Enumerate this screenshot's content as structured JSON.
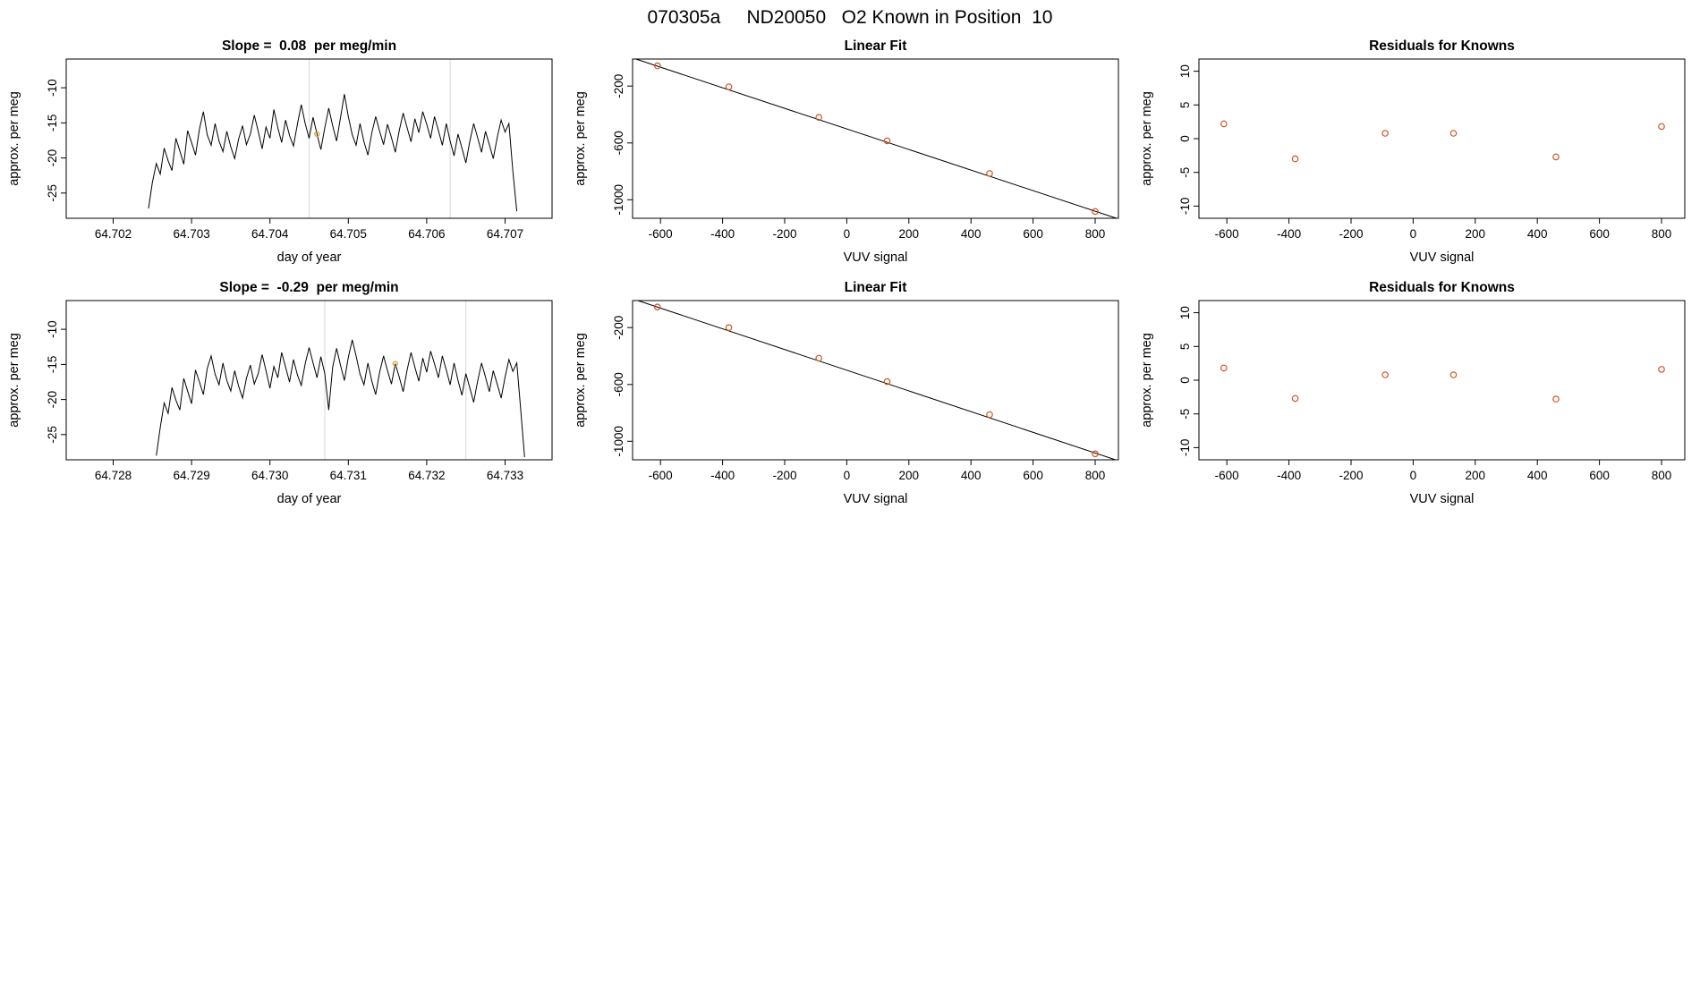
{
  "page": {
    "title": "070305a     ND20050   O2 Known in Position  10"
  },
  "colors": {
    "line": "#000000",
    "point": "#cc5522",
    "marker": "#e09b2d",
    "grid": "#d8d8d8",
    "axis": "#000000"
  },
  "chart_data": [
    {
      "type": "line",
      "title": "Slope =  0.08  per meg/min",
      "xlabel": "day of year",
      "ylabel": "approx. per meg",
      "xlim": [
        64.7014,
        64.7076
      ],
      "ylim": [
        -28.6,
        -5.9
      ],
      "xticks": [
        {
          "v": 64.702,
          "label": "64.702"
        },
        {
          "v": 64.703,
          "label": "64.703"
        },
        {
          "v": 64.704,
          "label": "64.704"
        },
        {
          "v": 64.705,
          "label": "64.705"
        },
        {
          "v": 64.706,
          "label": "64.706"
        },
        {
          "v": 64.707,
          "label": "64.707"
        }
      ],
      "yticks": [
        {
          "v": -25,
          "label": "-25"
        },
        {
          "v": -20,
          "label": "-20"
        },
        {
          "v": -15,
          "label": "-15"
        },
        {
          "v": -10,
          "label": "-10"
        }
      ],
      "gridlines_x": [
        64.7045,
        64.7063
      ],
      "x_start": 64.70245,
      "x_step": 5e-05,
      "series_y": [
        -27.2,
        -23.5,
        -20.8,
        -22.3,
        -18.6,
        -20.4,
        -21.8,
        -17.2,
        -19.0,
        -20.9,
        -16.1,
        -17.8,
        -19.6,
        -15.9,
        -13.4,
        -16.7,
        -18.2,
        -15.1,
        -17.6,
        -19.1,
        -16.2,
        -18.4,
        -20.1,
        -17.3,
        -15.4,
        -18.1,
        -16.6,
        -13.9,
        -16.2,
        -18.7,
        -15.6,
        -17.2,
        -13.1,
        -15.7,
        -17.8,
        -14.6,
        -16.8,
        -18.3,
        -15.2,
        -12.4,
        -15.1,
        -17.2,
        -14.2,
        -16.6,
        -18.8,
        -15.7,
        -12.9,
        -15.4,
        -17.6,
        -14.3,
        -10.9,
        -14.1,
        -16.7,
        -18.2,
        -15.1,
        -17.7,
        -19.6,
        -16.4,
        -14.1,
        -16.2,
        -18.1,
        -15.2,
        -17.1,
        -19.2,
        -16.1,
        -13.6,
        -15.7,
        -17.7,
        -14.4,
        -16.4,
        -13.4,
        -15.2,
        -17.2,
        -14.1,
        -16.1,
        -18.2,
        -15.1,
        -17.6,
        -19.7,
        -16.6,
        -18.6,
        -20.7,
        -17.7,
        -15.1,
        -17.1,
        -19.2,
        -16.2,
        -18.1,
        -20.1,
        -17.1,
        -14.6,
        -16.3,
        -15.1,
        -21.9,
        -27.6
      ],
      "marker": {
        "x": 64.7046,
        "y": -16.6
      }
    },
    {
      "type": "scatter",
      "title": "Linear Fit",
      "xlabel": "VUV signal",
      "ylabel": "approx. per meg",
      "xlim": [
        -690,
        875
      ],
      "ylim": [
        -1130,
        -10
      ],
      "xticks": [
        {
          "v": -600,
          "label": "-600"
        },
        {
          "v": -400,
          "label": "-400"
        },
        {
          "v": -200,
          "label": "-200"
        },
        {
          "v": 0,
          "label": "0"
        },
        {
          "v": 200,
          "label": "200"
        },
        {
          "v": 400,
          "label": "400"
        },
        {
          "v": 600,
          "label": "600"
        },
        {
          "v": 800,
          "label": "800"
        }
      ],
      "yticks": [
        {
          "v": -1000,
          "label": "-1000"
        },
        {
          "v": -600,
          "label": "-600"
        },
        {
          "v": -200,
          "label": "-200"
        }
      ],
      "points_x": [
        -610,
        -380,
        -90,
        130,
        460,
        800
      ],
      "points_y": [
        -58,
        -205,
        -420,
        -585,
        -815,
        -1082
      ],
      "fit": {
        "intercept": -501.5,
        "slope": -0.7235
      }
    },
    {
      "type": "scatter",
      "title": "Residuals for Knowns",
      "xlabel": "VUV signal",
      "ylabel": "approx. per meg",
      "xlim": [
        -690,
        875
      ],
      "ylim": [
        -11.8,
        11.8
      ],
      "xticks": [
        {
          "v": -600,
          "label": "-600"
        },
        {
          "v": -400,
          "label": "-400"
        },
        {
          "v": -200,
          "label": "-200"
        },
        {
          "v": 0,
          "label": "0"
        },
        {
          "v": 200,
          "label": "200"
        },
        {
          "v": 400,
          "label": "400"
        },
        {
          "v": 600,
          "label": "600"
        },
        {
          "v": 800,
          "label": "800"
        }
      ],
      "yticks": [
        {
          "v": -10,
          "label": "-10"
        },
        {
          "v": -5,
          "label": "-5"
        },
        {
          "v": 0,
          "label": "0"
        },
        {
          "v": 5,
          "label": "5"
        },
        {
          "v": 10,
          "label": "10"
        }
      ],
      "points_x": [
        -610,
        -380,
        -90,
        130,
        460,
        800
      ],
      "points_y": [
        2.2,
        -3.0,
        0.8,
        0.8,
        -2.7,
        1.8
      ]
    },
    {
      "type": "line",
      "title": "Slope =  -0.29  per meg/min",
      "xlabel": "day of year",
      "ylabel": "approx. per meg",
      "xlim": [
        64.7274,
        64.7336
      ],
      "ylim": [
        -28.6,
        -5.9
      ],
      "xticks": [
        {
          "v": 64.728,
          "label": "64.728"
        },
        {
          "v": 64.729,
          "label": "64.729"
        },
        {
          "v": 64.73,
          "label": "64.730"
        },
        {
          "v": 64.731,
          "label": "64.731"
        },
        {
          "v": 64.732,
          "label": "64.732"
        },
        {
          "v": 64.733,
          "label": "64.733"
        }
      ],
      "yticks": [
        {
          "v": -25,
          "label": "-25"
        },
        {
          "v": -20,
          "label": "-20"
        },
        {
          "v": -15,
          "label": "-15"
        },
        {
          "v": -10,
          "label": "-10"
        }
      ],
      "gridlines_x": [
        64.7307,
        64.7325
      ],
      "x_start": 64.72855,
      "x_step": 5e-05,
      "series_y": [
        -28.0,
        -24.0,
        -20.5,
        -22.0,
        -18.3,
        -20.1,
        -21.5,
        -17.0,
        -18.8,
        -20.6,
        -15.8,
        -17.5,
        -19.3,
        -15.6,
        -13.8,
        -16.4,
        -17.9,
        -14.8,
        -17.3,
        -18.8,
        -15.9,
        -18.1,
        -19.8,
        -17.0,
        -15.1,
        -17.8,
        -16.3,
        -13.6,
        -15.9,
        -18.4,
        -15.3,
        -16.9,
        -13.3,
        -15.4,
        -17.5,
        -14.3,
        -16.5,
        -18.0,
        -14.9,
        -12.6,
        -14.8,
        -16.9,
        -13.9,
        -16.3,
        -21.5,
        -15.4,
        -12.7,
        -15.1,
        -17.3,
        -14.0,
        -11.5,
        -13.8,
        -16.4,
        -17.9,
        -14.8,
        -17.4,
        -19.3,
        -16.1,
        -13.8,
        -15.9,
        -17.8,
        -14.9,
        -16.8,
        -18.9,
        -15.8,
        -13.3,
        -15.4,
        -17.4,
        -14.1,
        -16.1,
        -13.1,
        -14.9,
        -16.9,
        -13.8,
        -15.8,
        -17.9,
        -14.8,
        -17.3,
        -19.4,
        -16.3,
        -18.3,
        -20.4,
        -17.4,
        -14.8,
        -16.8,
        -18.9,
        -15.9,
        -17.8,
        -19.8,
        -16.8,
        -14.3,
        -16.0,
        -14.8,
        -21.5,
        -28.2
      ],
      "marker": {
        "x": 64.7316,
        "y": -14.9
      }
    },
    {
      "type": "scatter",
      "title": "Linear Fit",
      "xlabel": "VUV signal",
      "ylabel": "approx. per meg",
      "xlim": [
        -690,
        875
      ],
      "ylim": [
        -1130,
        -10
      ],
      "xticks": [
        {
          "v": -600,
          "label": "-600"
        },
        {
          "v": -400,
          "label": "-400"
        },
        {
          "v": -200,
          "label": "-200"
        },
        {
          "v": 0,
          "label": "0"
        },
        {
          "v": 200,
          "label": "200"
        },
        {
          "v": 400,
          "label": "400"
        },
        {
          "v": 600,
          "label": "600"
        },
        {
          "v": 800,
          "label": "800"
        }
      ],
      "yticks": [
        {
          "v": -1000,
          "label": "-1000"
        },
        {
          "v": -600,
          "label": "-600"
        },
        {
          "v": -200,
          "label": "-200"
        }
      ],
      "points_x": [
        -610,
        -380,
        -90,
        130,
        460,
        800
      ],
      "points_y": [
        -55,
        -200,
        -415,
        -580,
        -812,
        -1088
      ],
      "fit": {
        "intercept": -500,
        "slope": -0.728
      }
    },
    {
      "type": "scatter",
      "title": "Residuals for Knowns",
      "xlabel": "VUV signal",
      "ylabel": "approx. per meg",
      "xlim": [
        -690,
        875
      ],
      "ylim": [
        -11.8,
        11.8
      ],
      "xticks": [
        {
          "v": -600,
          "label": "-600"
        },
        {
          "v": -400,
          "label": "-400"
        },
        {
          "v": -200,
          "label": "-200"
        },
        {
          "v": 0,
          "label": "0"
        },
        {
          "v": 200,
          "label": "200"
        },
        {
          "v": 400,
          "label": "400"
        },
        {
          "v": 600,
          "label": "600"
        },
        {
          "v": 800,
          "label": "800"
        }
      ],
      "yticks": [
        {
          "v": -10,
          "label": "-10"
        },
        {
          "v": -5,
          "label": "-5"
        },
        {
          "v": 0,
          "label": "0"
        },
        {
          "v": 5,
          "label": "5"
        },
        {
          "v": 10,
          "label": "10"
        }
      ],
      "points_x": [
        -610,
        -380,
        -90,
        130,
        460,
        800
      ],
      "points_y": [
        1.8,
        -2.7,
        0.8,
        0.8,
        -2.8,
        1.6
      ]
    }
  ]
}
